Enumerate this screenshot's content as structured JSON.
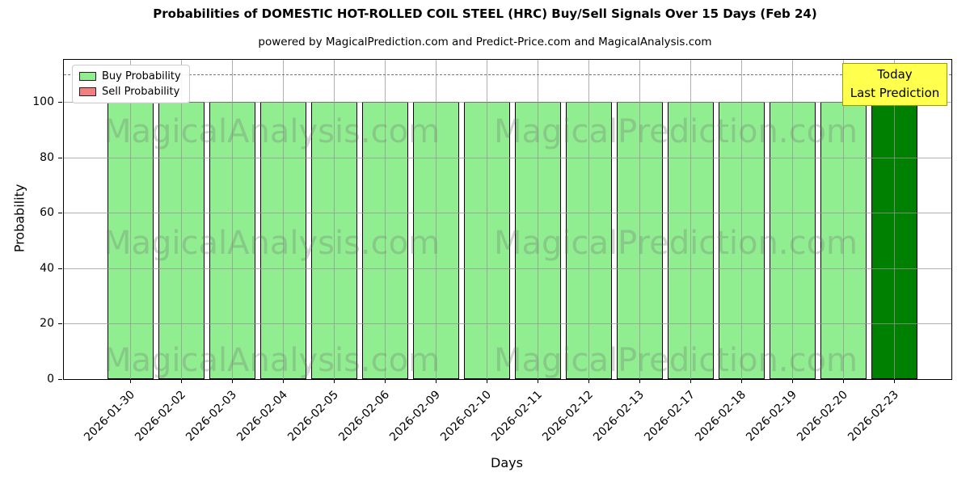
{
  "title": "Probabilities of DOMESTIC HOT-ROLLED COIL STEEL (HRC) Buy/Sell Signals Over 15 Days (Feb 24)",
  "subtitle": "powered by MagicalPrediction.com and Predict-Price.com and MagicalAnalysis.com",
  "legend": {
    "items": [
      {
        "label": "Buy Probability",
        "color": "#90EE90"
      },
      {
        "label": "Sell Probability",
        "color": "#F08080"
      }
    ]
  },
  "annotation": {
    "line1": "Today",
    "line2": "Last Prediction",
    "bg_color": "#FFFF4D",
    "border_color": "#9B9B00"
  },
  "watermarks": {
    "left_text": "MagicalAnalysis.com",
    "right_text": "MagicalPrediction.com"
  },
  "chart_data": {
    "type": "bar",
    "title": "Probabilities of DOMESTIC HOT-ROLLED COIL STEEL (HRC) Buy/Sell Signals Over 15 Days (Feb 24)",
    "xlabel": "Days",
    "ylabel": "Probability",
    "categories": [
      "2026-01-30",
      "2026-02-02",
      "2026-02-03",
      "2026-02-04",
      "2026-02-05",
      "2026-02-06",
      "2026-02-09",
      "2026-02-10",
      "2026-02-11",
      "2026-02-12",
      "2026-02-13",
      "2026-02-17",
      "2026-02-18",
      "2026-02-19",
      "2026-02-20",
      "2026-02-23"
    ],
    "series": [
      {
        "name": "Buy Probability",
        "values": [
          100,
          100,
          100,
          100,
          100,
          100,
          100,
          100,
          100,
          100,
          100,
          100,
          100,
          100,
          100,
          100
        ],
        "color": "#90EE90",
        "last_bar_color": "#008000"
      },
      {
        "name": "Sell Probability",
        "values": [
          0,
          0,
          0,
          0,
          0,
          0,
          0,
          0,
          0,
          0,
          0,
          0,
          0,
          0,
          0,
          0
        ],
        "color": "#F08080"
      }
    ],
    "ylim": [
      0,
      115.2
    ],
    "yticks": [
      0,
      20,
      40,
      60,
      80,
      100
    ],
    "dashed_line_y": 110,
    "grid": true,
    "grid_on_top": true,
    "legend_position": "upper left",
    "bar_edge_color": "#000000"
  }
}
